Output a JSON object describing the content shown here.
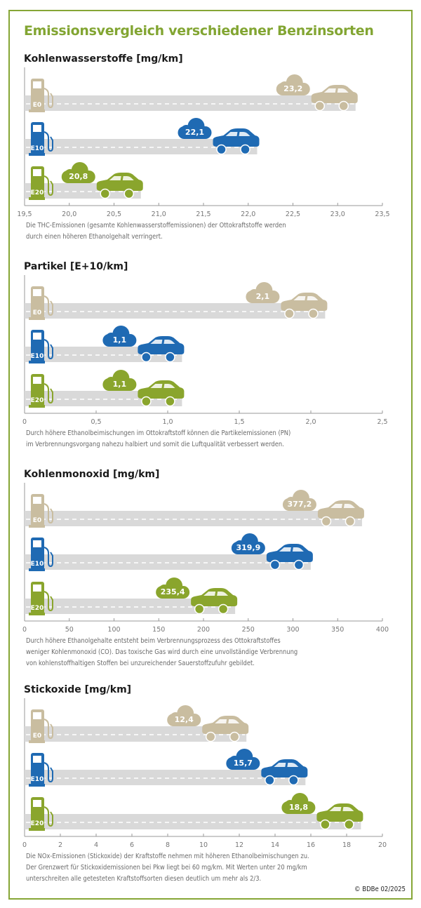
{
  "title": "Emissionsvergleich verschiedener Benzinsorten",
  "copyright": "© BDBe 02/2025",
  "colors": {
    "E0": "#c9bda0",
    "E10": "#1f6ab3",
    "E20": "#8aa52d",
    "frame": "#86a636",
    "road": "#d9d9d9"
  },
  "chart_data": [
    {
      "type": "bar",
      "title": "Kohlenwasserstoffe [mg/km]",
      "categories": [
        "E0",
        "E10",
        "E20"
      ],
      "values": [
        23.2,
        22.1,
        20.8
      ],
      "value_labels": [
        "23,2",
        "22,1",
        "20,8"
      ],
      "xlim": [
        19.5,
        23.5
      ],
      "ticks": [
        "19,5",
        "20,0",
        "20,5",
        "21,0",
        "21,5",
        "22,0",
        "22,5",
        "23,0",
        "23,5"
      ],
      "caption": [
        "Die THC-Emissionen (gesamte Kohlenwasserstoffemissionen) der Ottokraftstoffe werden",
        "durch einen höheren Ethanolgehalt verringert."
      ]
    },
    {
      "type": "bar",
      "title": "Partikel [E+10/km]",
      "categories": [
        "E0",
        "E10",
        "E20"
      ],
      "values": [
        2.1,
        1.1,
        1.1
      ],
      "value_labels": [
        "2,1",
        "1,1",
        "1,1"
      ],
      "xlim": [
        0,
        2.5
      ],
      "ticks": [
        "0",
        "0,5",
        "1,0",
        "1,5",
        "2,0",
        "2,5"
      ],
      "caption": [
        "Durch höhere Ethanolbeimischungen im Ottokraftstoff können die Partikelemissionen (PN)",
        "im Verbrennungsvorgang nahezu halbiert und somit die Luftqualität verbessert werden."
      ]
    },
    {
      "type": "bar",
      "title": "Kohlenmonoxid [mg/km]",
      "categories": [
        "E0",
        "E10",
        "E20"
      ],
      "values": [
        377.2,
        319.9,
        235.4
      ],
      "value_labels": [
        "377,2",
        "319,9",
        "235,4"
      ],
      "xlim": [
        0,
        400
      ],
      "ticks": [
        "0",
        "50",
        "100",
        "150",
        "200",
        "250",
        "300",
        "350",
        "400"
      ],
      "caption": [
        "Durch höhere Ethanolgehalte entsteht beim Verbrennungsprozess des Ottokraftstoffes",
        "weniger Kohlenmonoxid (CO). Das toxische Gas wird durch eine unvollständige Verbrennung",
        "von kohlenstoffhaltigen Stoffen bei unzureichender Sauerstoffzufuhr gebildet."
      ]
    },
    {
      "type": "bar",
      "title": "Stickoxide [mg/km]",
      "categories": [
        "E0",
        "E10",
        "E20"
      ],
      "values": [
        12.4,
        15.7,
        18.8
      ],
      "value_labels": [
        "12,4",
        "15,7",
        "18,8"
      ],
      "xlim": [
        0,
        20
      ],
      "ticks": [
        "0",
        "2",
        "4",
        "6",
        "8",
        "10",
        "12",
        "14",
        "16",
        "18",
        "20"
      ],
      "caption": [
        "Die NOx-Emissionen (Stickoxide) der Kraftstoffe nehmen mit höheren Ethanolbeimischungen zu.",
        "Der Grenzwert für Stickoxidemissionen bei Pkw liegt bei 60 mg/km. Mit Werten unter 20 mg/km",
        "unterschreiten alle getesteten Kraftstoffsorten diesen deutlich um mehr als 2/3."
      ]
    }
  ]
}
